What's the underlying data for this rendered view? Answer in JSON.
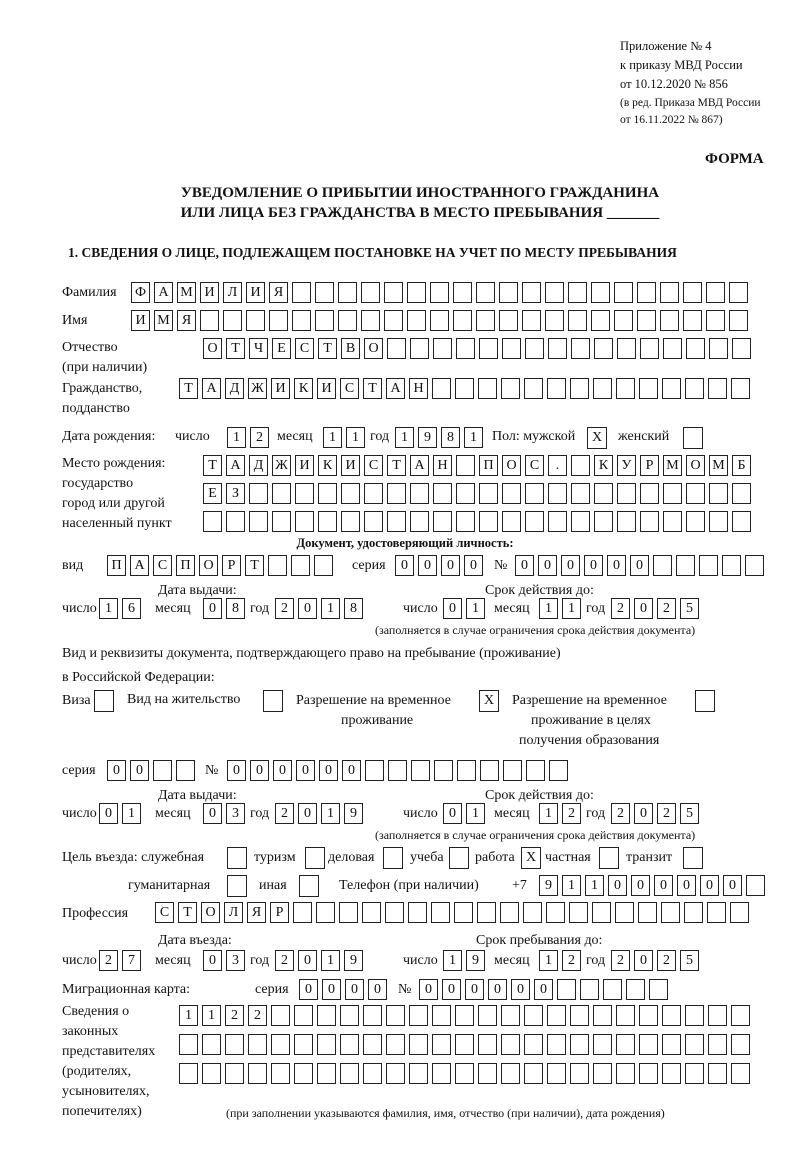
{
  "header": {
    "line1": "Приложение № 4",
    "line2": "к приказу МВД России",
    "line3": "от 10.12.2020 № 856",
    "line4": "(в ред. Приказа МВД России",
    "line5": "от 16.11.2022 № 867)",
    "form_label": "ФОРМА",
    "title1": "УВЕДОМЛЕНИЕ О ПРИБЫТИИ ИНОСТРАННОГО ГРАЖДАНИНА",
    "title2": "ИЛИ ЛИЦА БЕЗ ГРАЖДАНСТВА В МЕСТО ПРЕБЫВАНИЯ _______",
    "section1": "1. СВЕДЕНИЯ О ЛИЦЕ, ПОДЛЕЖАЩЕМ ПОСТАНОВКЕ НА УЧЕТ ПО МЕСТУ ПРЕБЫВАНИЯ"
  },
  "labels": {
    "surname": "Фамилия",
    "name": "Имя",
    "patronymic1": "Отчество",
    "patronymic2": "(при наличии)",
    "citizenship1": "Гражданство,",
    "citizenship2": "подданство",
    "birth_date": "Дата рождения:",
    "day": "число",
    "month": "месяц",
    "year": "год",
    "sex": "Пол: мужской",
    "female": "женский",
    "birthplace1": "Место рождения:",
    "birthplace2": "государство",
    "birthplace3": "город или другой",
    "birthplace4": "населенный пункт",
    "id_doc": "Документ, удостоверяющий личность:",
    "kind": "вид",
    "series": "серия",
    "number": "№",
    "issue_date": "Дата выдачи:",
    "valid_until": "Срок действия до:",
    "valid_note": "(заполняется в случае ограничения срока действия документа)",
    "right_doc1": "Вид и реквизиты документа, подтверждающего право на пребывание (проживание)",
    "right_doc2": "в Российской Федерации:",
    "visa": "Виза",
    "residence": "Вид на жительство",
    "temp1": "Разрешение на временное",
    "temp2": "проживание",
    "temp_edu1": "Разрешение на временное",
    "temp_edu2": "проживание в целях",
    "temp_edu3": "получения образования",
    "purpose": "Цель въезда: служебная",
    "tourism": "туризм",
    "business": "деловая",
    "study": "учеба",
    "work": "работа",
    "private": "частная",
    "transit": "транзит",
    "humanitarian": "гуманитарная",
    "other": "иная",
    "phone": "Телефон (при наличии)",
    "phone_prefix": "+7",
    "profession": "Профессия",
    "entry_date": "Дата въезда:",
    "stay_until": "Срок пребывания до:",
    "migration_card": "Миграционная карта:",
    "reps1": "Сведения о",
    "reps2": "законных",
    "reps3": "представителях",
    "reps4": "(родителях,",
    "reps5": "усыновителях,",
    "reps6": "попечителях)",
    "reps_note": "(при заполнении указываются фамилия, имя, отчество (при наличии), дата рождения)"
  },
  "values": {
    "surname": "ФАМИЛИЯ",
    "name": "ИМЯ",
    "patronymic": "ОТЧЕСТВО",
    "citizenship": "ТАДЖИКИСТАН",
    "birth_day": "12",
    "birth_month": "11",
    "birth_year": "1981",
    "sex_male": "X",
    "sex_female": "",
    "birthplace_1": "ТАДЖИКИСТАН ПОС. КУРМОМБ",
    "birthplace_2": "ЕЗ",
    "birthplace_3": "",
    "doc_kind": "ПАСПОРТ",
    "doc_series": "0000",
    "doc_number": "000000",
    "doc_issue_day": "16",
    "doc_issue_month": "08",
    "doc_issue_year": "2018",
    "doc_valid_day": "01",
    "doc_valid_month": "11",
    "doc_valid_year": "2025",
    "visa": "",
    "residence": "",
    "temp": "X",
    "temp_edu": "",
    "right_series": "00",
    "right_number": "000000",
    "right_issue_day": "01",
    "right_issue_month": "03",
    "right_issue_year": "2019",
    "right_valid_day": "01",
    "right_valid_month": "12",
    "right_valid_year": "2025",
    "purpose_service": "",
    "purpose_tourism": "",
    "purpose_business": "",
    "purpose_study": "",
    "purpose_work": "X",
    "purpose_private": "",
    "purpose_transit": "",
    "purpose_humanitarian": "",
    "purpose_other": "",
    "phone": "911000000",
    "profession": "СТОЛЯР",
    "entry_day": "27",
    "entry_month": "03",
    "entry_year": "2019",
    "stay_day": "19",
    "stay_month": "12",
    "stay_year": "2025",
    "mc_series": "0000",
    "mc_number": "000000",
    "reps_1": "1122",
    "reps_2": "",
    "reps_3": ""
  }
}
